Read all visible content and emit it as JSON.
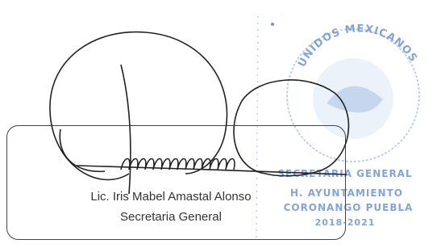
{
  "signature_block": {
    "name": "Lic. Iris Mabel Amastal Alonso",
    "position": "Secretaria General"
  },
  "stamp": {
    "arc_text": "UNIDOS MEXICANOS",
    "lines": [
      "SECRETARIA GENERAL",
      "H. AYUNTAMIENTO",
      "CORONANGO PUEBLA",
      "2018-2021"
    ]
  }
}
